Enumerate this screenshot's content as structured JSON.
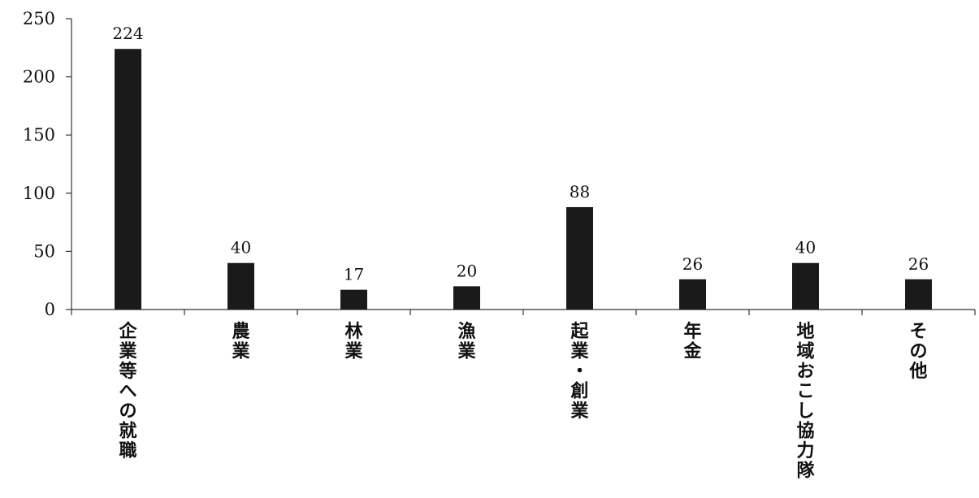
{
  "chart_data": {
    "type": "bar",
    "title": "",
    "xlabel": "",
    "ylabel": "",
    "categories": [
      "企業等への就職",
      "農業",
      "林業",
      "漁業",
      "起業・創業",
      "年金",
      "地域おこし協力隊",
      "その他"
    ],
    "values": [
      224,
      40,
      17,
      20,
      88,
      26,
      40,
      26
    ],
    "ylim": [
      0,
      250
    ],
    "yticks": [
      0,
      50,
      100,
      150,
      200,
      250
    ],
    "data_labels": [
      "224",
      "40",
      "17",
      "20",
      "88",
      "26",
      "40",
      "26"
    ],
    "grid": false,
    "legend": "none",
    "colors": {
      "bar": "#1a1a1a",
      "axis": "#333333",
      "text": "#111111"
    }
  }
}
